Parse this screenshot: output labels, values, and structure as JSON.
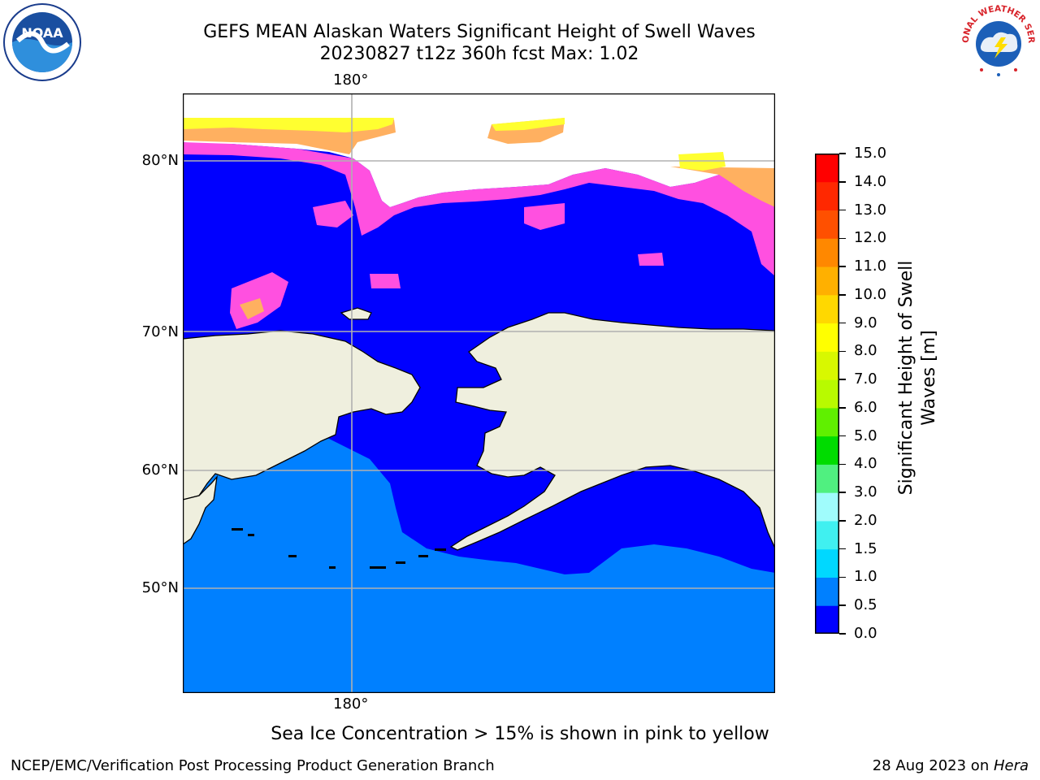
{
  "header": {
    "title_line1": "GEFS MEAN Alaskan Waters Significant Height of Swell Waves",
    "title_line2": "20230827 t12z 360h fcst   Max: 1.02"
  },
  "axes": {
    "lon_label_top": "180°",
    "lon_label_bottom": "180°",
    "lat_labels": [
      "80°N",
      "70°N",
      "60°N",
      "50°N"
    ]
  },
  "colorbar": {
    "label_line1": "Significant Height of Swell",
    "label_line2": "Waves [m]",
    "ticks": [
      "0.0",
      "0.5",
      "1.0",
      "1.5",
      "2.0",
      "3.0",
      "4.0",
      "5.0",
      "6.0",
      "7.0",
      "8.0",
      "9.0",
      "10.0",
      "11.0",
      "12.0",
      "13.0",
      "14.0",
      "15.0"
    ],
    "colors": [
      "#0000ff",
      "#0080ff",
      "#00d8ff",
      "#40f0f0",
      "#a0fcfc",
      "#50f080",
      "#00dc00",
      "#60f000",
      "#b8fa00",
      "#d8f800",
      "#ffff00",
      "#ffd800",
      "#ffb000",
      "#ff8800",
      "#ff5000",
      "#ff2800",
      "#ff0000"
    ]
  },
  "map_colors": {
    "land": "#efefde",
    "ocean_low": "#0000ff",
    "ocean_mid": "#0080ff",
    "ice_pink": "#ff50e0",
    "ice_orange": "#ffb060",
    "ice_yellow": "#ffff30",
    "grid": "#b0b0b0"
  },
  "note": "Sea Ice Concentration > 15% is shown in pink to yellow",
  "footer": {
    "left": "NCEP/EMC/Verification Post Processing Product Generation Branch",
    "right_prefix": "28 Aug 2023 on ",
    "right_host": "Hera"
  },
  "logos": {
    "noaa_text": "NOAA",
    "nws_text": "NATIONAL WEATHER SERVICE"
  }
}
